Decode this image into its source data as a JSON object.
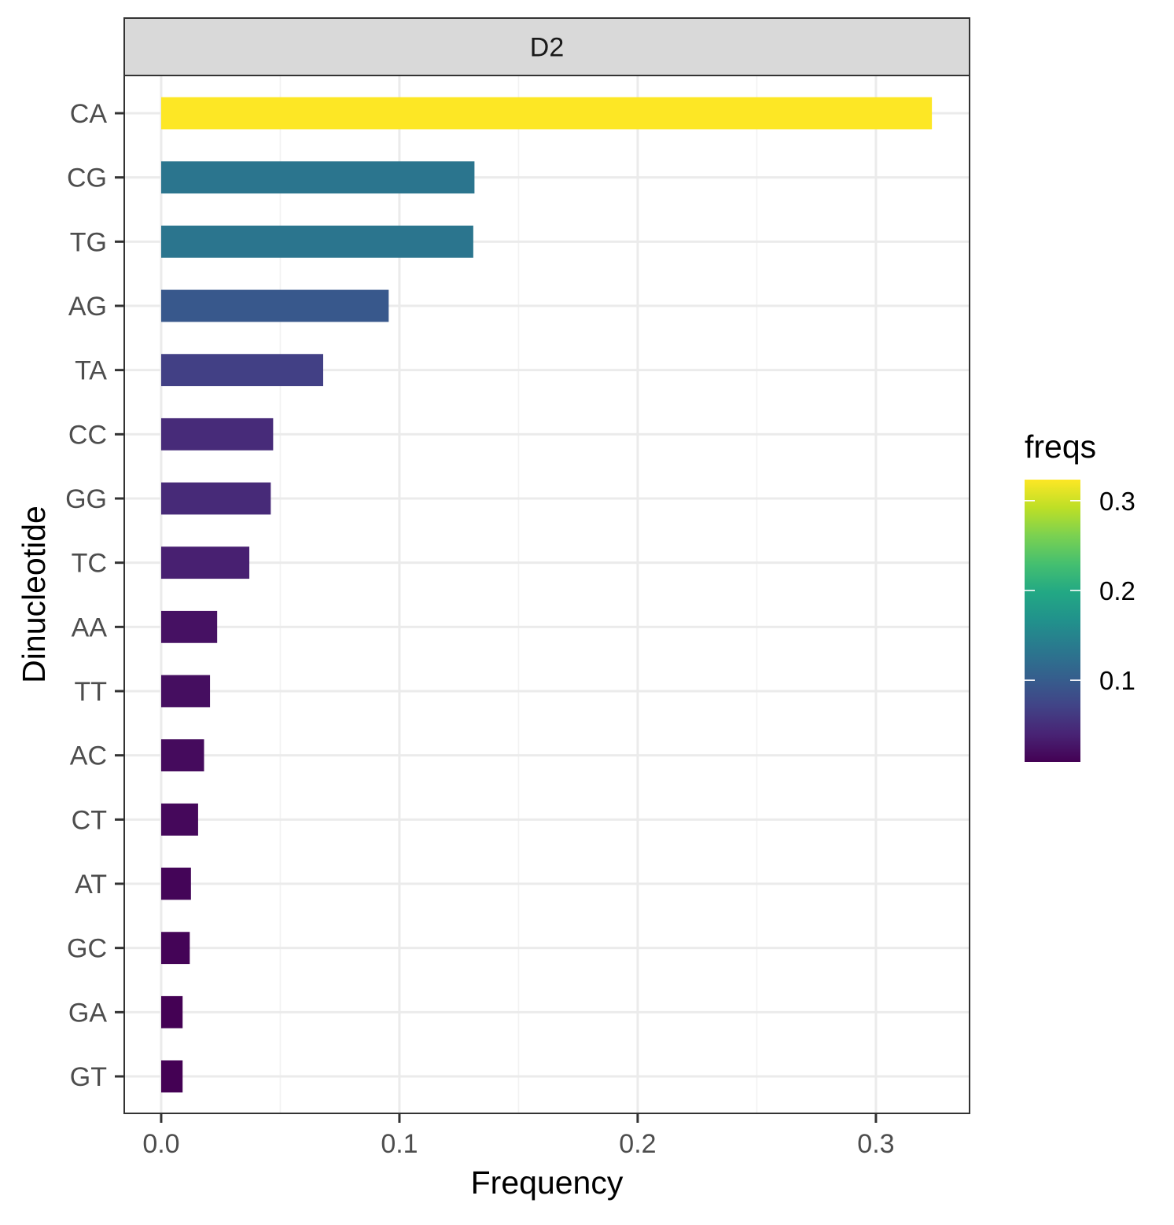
{
  "chart_data": {
    "type": "bar",
    "orientation": "horizontal",
    "facet": "D2",
    "categories": [
      "CA",
      "CG",
      "TG",
      "AG",
      "TA",
      "CC",
      "GG",
      "TC",
      "AA",
      "TT",
      "AC",
      "CT",
      "AT",
      "GC",
      "GA",
      "GT"
    ],
    "values": [
      0.3235,
      0.1315,
      0.131,
      0.0955,
      0.068,
      0.047,
      0.046,
      0.037,
      0.0235,
      0.0205,
      0.018,
      0.0155,
      0.0125,
      0.012,
      0.009,
      0.009
    ],
    "xlabel": "Frequency",
    "ylabel": "Dinucleotide",
    "xlim": [
      -0.0155,
      0.3393
    ],
    "x_ticks": [
      0.0,
      0.1,
      0.2,
      0.3
    ],
    "x_tick_labels": [
      "0.0",
      "0.1",
      "0.2",
      "0.3"
    ],
    "grid": true,
    "legend": {
      "title": "freqs",
      "type": "colorbar",
      "colormap": "viridis",
      "range": [
        0.009,
        0.3235
      ],
      "ticks": [
        0.1,
        0.2,
        0.3
      ],
      "tick_labels": [
        "0.1",
        "0.2",
        "0.3"
      ],
      "placement": "right"
    },
    "colors": {
      "panel_border": "#333333",
      "strip_fill": "#d9d9d9",
      "grid_major": "#ebebeb",
      "grid_minor": "#f2f2f2",
      "tick_mark": "#333333"
    }
  }
}
